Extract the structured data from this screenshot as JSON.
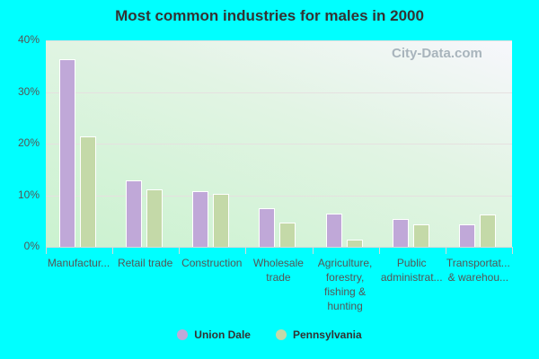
{
  "title": "Most common industries for males in 2000",
  "watermark": "City-Data.com",
  "colors": {
    "union_dale": "#c0a8d8",
    "pennsylvania": "#c4d9a8",
    "background": "#00ffff"
  },
  "yticks": [
    "0%",
    "10%",
    "20%",
    "30%",
    "40%"
  ],
  "legend": [
    {
      "label": "Union Dale",
      "color": "#c0a8d8"
    },
    {
      "label": "Pennsylvania",
      "color": "#c4d9a8"
    }
  ],
  "xlabels": [
    "Manufactur...",
    "Retail trade",
    "Construction",
    "Wholesale\ntrade",
    "Agriculture,\nforestry,\nfishing &\nhunting",
    "Public\nadministrat...",
    "Transportat...\n& warehou..."
  ],
  "chart_data": {
    "type": "bar",
    "title": "Most common industries for males in 2000",
    "xlabel": "",
    "ylabel": "",
    "ylim": [
      0,
      40
    ],
    "y_ticks": [
      "0%",
      "10%",
      "20%",
      "30%",
      "40%"
    ],
    "grid": true,
    "legend_position": "bottom",
    "categories": [
      "Manufacturing",
      "Retail trade",
      "Construction",
      "Wholesale trade",
      "Agriculture, forestry, fishing & hunting",
      "Public administration",
      "Transportation & warehousing"
    ],
    "series": [
      {
        "name": "Union Dale",
        "values": [
          36.3,
          12.9,
          10.8,
          7.5,
          6.4,
          5.4,
          4.3
        ]
      },
      {
        "name": "Pennsylvania",
        "values": [
          21.4,
          11.1,
          10.3,
          4.7,
          1.4,
          4.3,
          6.3
        ]
      }
    ]
  }
}
